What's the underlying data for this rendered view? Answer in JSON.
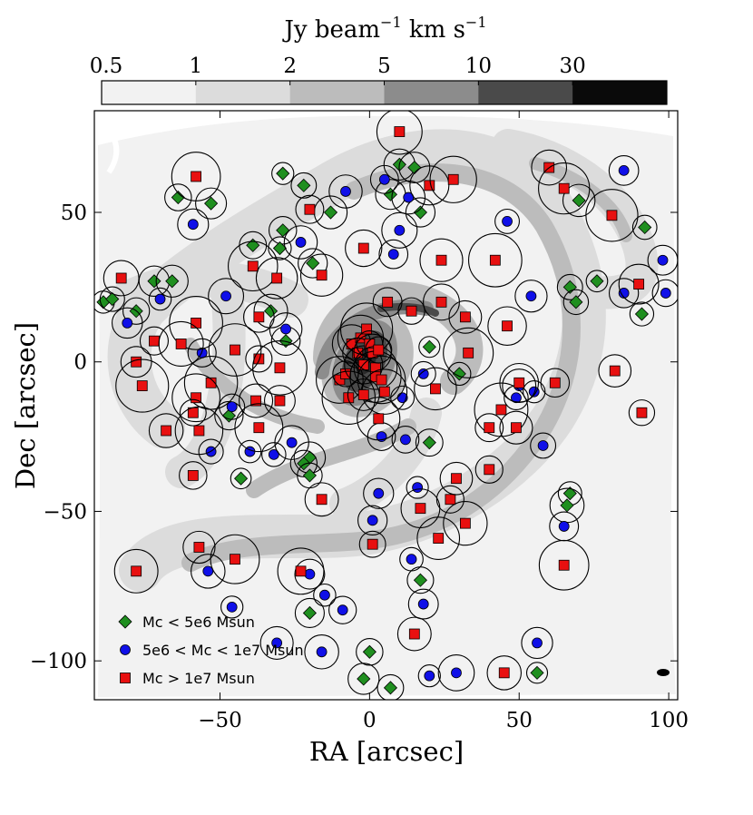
{
  "chart_data": {
    "type": "scatter",
    "title": "",
    "xlabel": "RA [arcsec]",
    "ylabel": "Dec [arcsec]",
    "xlim": [
      -92,
      103
    ],
    "ylim": [
      -113,
      84
    ],
    "xticks": [
      -50,
      0,
      50,
      100
    ],
    "xtick_labels": [
      "−50",
      "0",
      "50",
      "100"
    ],
    "yticks": [
      -100,
      -50,
      0,
      50
    ],
    "ytick_labels": [
      "−100",
      "−50",
      "0",
      "50"
    ],
    "colorbar": {
      "label_main": "Jy beam",
      "label_exp": "−1",
      "label_tail": " km s",
      "label_exp2": "−1",
      "tick_labels": [
        "0.5",
        "1",
        "2",
        "5",
        "10",
        "30"
      ],
      "tick_positions": [
        0.5,
        1,
        2,
        5,
        10,
        30
      ],
      "levels": [
        0.5,
        1,
        2,
        5,
        10,
        30,
        60
      ],
      "colors": [
        "#f2f2f2",
        "#dcdcdc",
        "#bcbcbc",
        "#8c8c8c",
        "#4a4a4a",
        "#0a0a0a"
      ]
    },
    "legend": {
      "position": "bottom-left",
      "entries": [
        {
          "label": "Mc < 5e6 Msun",
          "marker": "diamond",
          "color": "#1f8f1f"
        },
        {
          "label": "5e6 < Mc < 1e7 Msun",
          "marker": "circle",
          "color": "#1010e8"
        },
        {
          "label": "Mc > 1e7 Msun",
          "marker": "square",
          "color": "#e81010"
        }
      ]
    },
    "series": [
      {
        "name": "Mc < 5e6 Msun",
        "marker": "diamond",
        "points": [
          [
            -29,
            63
          ],
          [
            -64,
            55
          ],
          [
            -53,
            53
          ],
          [
            -22,
            59
          ],
          [
            -13,
            50
          ],
          [
            7,
            56
          ],
          [
            10,
            66
          ],
          [
            15,
            65
          ],
          [
            17,
            50
          ],
          [
            -39,
            39
          ],
          [
            -29,
            44
          ],
          [
            -30,
            38
          ],
          [
            -19,
            33
          ],
          [
            -89,
            20
          ],
          [
            -86,
            21
          ],
          [
            -78,
            17
          ],
          [
            -72,
            27
          ],
          [
            -66,
            27
          ],
          [
            -33,
            17
          ],
          [
            -28,
            7
          ],
          [
            20,
            5
          ],
          [
            30,
            -4
          ],
          [
            20,
            -27
          ],
          [
            -20,
            -32
          ],
          [
            -22,
            -34
          ],
          [
            -20,
            -38
          ],
          [
            -43,
            -39
          ],
          [
            -47,
            -18
          ],
          [
            17,
            -73
          ],
          [
            67,
            -44
          ],
          [
            66,
            -48
          ],
          [
            -20,
            -84
          ],
          [
            0,
            -97
          ],
          [
            -2,
            -106
          ],
          [
            7,
            -109
          ],
          [
            56,
            -104
          ],
          [
            67,
            25
          ],
          [
            69,
            20
          ],
          [
            76,
            27
          ],
          [
            70,
            54
          ],
          [
            92,
            45
          ],
          [
            91,
            16
          ]
        ]
      },
      {
        "name": "5e6 < Mc < 1e7 Msun",
        "marker": "circle",
        "points": [
          [
            -59,
            46
          ],
          [
            -23,
            40
          ],
          [
            -8,
            57
          ],
          [
            5,
            61
          ],
          [
            10,
            44
          ],
          [
            13,
            55
          ],
          [
            8,
            36
          ],
          [
            46,
            47
          ],
          [
            85,
            64
          ],
          [
            -48,
            22
          ],
          [
            -70,
            21
          ],
          [
            -56,
            3
          ],
          [
            -81,
            13
          ],
          [
            -28,
            11
          ],
          [
            11,
            -12
          ],
          [
            18,
            -4
          ],
          [
            12,
            -26
          ],
          [
            55,
            -10
          ],
          [
            58,
            -28
          ],
          [
            -53,
            -30
          ],
          [
            -32,
            -31
          ],
          [
            -40,
            -30
          ],
          [
            -26,
            -27
          ],
          [
            -46,
            -15
          ],
          [
            16,
            -42
          ],
          [
            3,
            -44
          ],
          [
            1,
            -53
          ],
          [
            -20,
            -71
          ],
          [
            -54,
            -70
          ],
          [
            14,
            -66
          ],
          [
            18,
            -81
          ],
          [
            -15,
            -78
          ],
          [
            -9,
            -83
          ],
          [
            -46,
            -82
          ],
          [
            -31,
            -94
          ],
          [
            -16,
            -97
          ],
          [
            20,
            -105
          ],
          [
            29,
            -104
          ],
          [
            56,
            -94
          ],
          [
            65,
            -55
          ],
          [
            50,
            -8
          ],
          [
            49,
            -12
          ],
          [
            85,
            23
          ],
          [
            98,
            34
          ],
          [
            99,
            23
          ],
          [
            54,
            22
          ],
          [
            4,
            -25
          ]
        ]
      },
      {
        "name": "Mc > 1e7 Msun",
        "marker": "square",
        "points": [
          [
            10,
            77
          ],
          [
            -58,
            62
          ],
          [
            -20,
            51
          ],
          [
            -2,
            38
          ],
          [
            20,
            59
          ],
          [
            28,
            61
          ],
          [
            24,
            34
          ],
          [
            42,
            34
          ],
          [
            60,
            65
          ],
          [
            65,
            58
          ],
          [
            81,
            49
          ],
          [
            -83,
            28
          ],
          [
            -39,
            32
          ],
          [
            -31,
            28
          ],
          [
            -16,
            29
          ],
          [
            -37,
            15
          ],
          [
            -58,
            13
          ],
          [
            -72,
            7
          ],
          [
            -63,
            6
          ],
          [
            -78,
            0
          ],
          [
            -76,
            -8
          ],
          [
            -37,
            1
          ],
          [
            -30,
            -2
          ],
          [
            -45,
            4
          ],
          [
            -53,
            -7
          ],
          [
            -58,
            -12
          ],
          [
            -30,
            -13
          ],
          [
            -38,
            -13
          ],
          [
            -59,
            -17
          ],
          [
            -57,
            -23
          ],
          [
            -68,
            -23
          ],
          [
            -37,
            -22
          ],
          [
            -10,
            -6
          ],
          [
            -8,
            -4
          ],
          [
            -7,
            -12
          ],
          [
            -6,
            6
          ],
          [
            -3,
            8
          ],
          [
            -4,
            3
          ],
          [
            -2,
            -1
          ],
          [
            -1,
            11
          ],
          [
            0,
            6
          ],
          [
            1,
            3
          ],
          [
            2,
            -2
          ],
          [
            2,
            -5
          ],
          [
            3,
            4
          ],
          [
            4,
            -6
          ],
          [
            5,
            -10
          ],
          [
            -2,
            -11
          ],
          [
            6,
            20
          ],
          [
            14,
            17
          ],
          [
            24,
            20
          ],
          [
            32,
            15
          ],
          [
            33,
            3
          ],
          [
            46,
            12
          ],
          [
            22,
            -9
          ],
          [
            3,
            -19
          ],
          [
            44,
            -16
          ],
          [
            40,
            -22
          ],
          [
            49,
            -22
          ],
          [
            62,
            -7
          ],
          [
            40,
            -36
          ],
          [
            50,
            -7
          ],
          [
            27,
            -46
          ],
          [
            29,
            -39
          ],
          [
            17,
            -49
          ],
          [
            32,
            -54
          ],
          [
            23,
            -59
          ],
          [
            1,
            -61
          ],
          [
            -59,
            -38
          ],
          [
            -16,
            -46
          ],
          [
            -45,
            -66
          ],
          [
            -57,
            -62
          ],
          [
            -23,
            -70
          ],
          [
            -78,
            -70
          ],
          [
            65,
            -68
          ],
          [
            15,
            -91
          ],
          [
            45,
            -104
          ],
          [
            82,
            -3
          ],
          [
            91,
            -17
          ],
          [
            90,
            26
          ]
        ]
      }
    ]
  }
}
